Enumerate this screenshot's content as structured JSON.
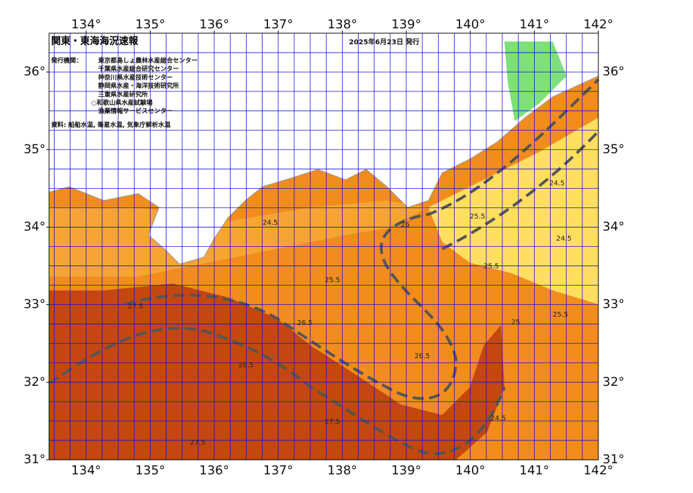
{
  "header": {
    "title": "関東・東海海況速報",
    "date": "2025年6月23日 発行"
  },
  "issuers": {
    "label": "発行機関：",
    "names": [
      "東京都島しょ農林水産総合センター",
      "千葉県水産総合研究センター",
      "神奈川県水産技術センター",
      "静岡県水産・海洋技術研究所",
      "三重県水産研究所",
      "○和歌山県水産試験場",
      "漁業情報サービスセンター"
    ]
  },
  "source": "資料: 船舶水温, 衛星水温, 気象庁解析水温",
  "map": {
    "lonlim": [
      133.42,
      142
    ],
    "latlim": [
      31,
      36.5
    ],
    "lonticks": [
      {
        "value": 134,
        "label": "134°"
      },
      {
        "value": 135,
        "label": "135°"
      },
      {
        "value": 136,
        "label": "136°"
      },
      {
        "value": 137,
        "label": "137°"
      },
      {
        "value": 138,
        "label": "138°"
      },
      {
        "value": 139,
        "label": "139°"
      },
      {
        "value": 140,
        "label": "140°"
      },
      {
        "value": 141,
        "label": "141°"
      },
      {
        "value": 142,
        "label": "142°"
      }
    ],
    "latticks": [
      {
        "value": 31,
        "label": "31°"
      },
      {
        "value": 32,
        "label": "32°"
      },
      {
        "value": 33,
        "label": "33°"
      },
      {
        "value": 34,
        "label": "34°"
      },
      {
        "value": 35,
        "label": "35°"
      },
      {
        "value": 36,
        "label": "36°"
      }
    ],
    "contour_labels": [
      24.5,
      25.5,
      26.5,
      27.5,
      26.5,
      25.5,
      24.5,
      25.5,
      27.5,
      26.5,
      24.5,
      27.5,
      25.5,
      26,
      24.5,
      25
    ]
  }
}
